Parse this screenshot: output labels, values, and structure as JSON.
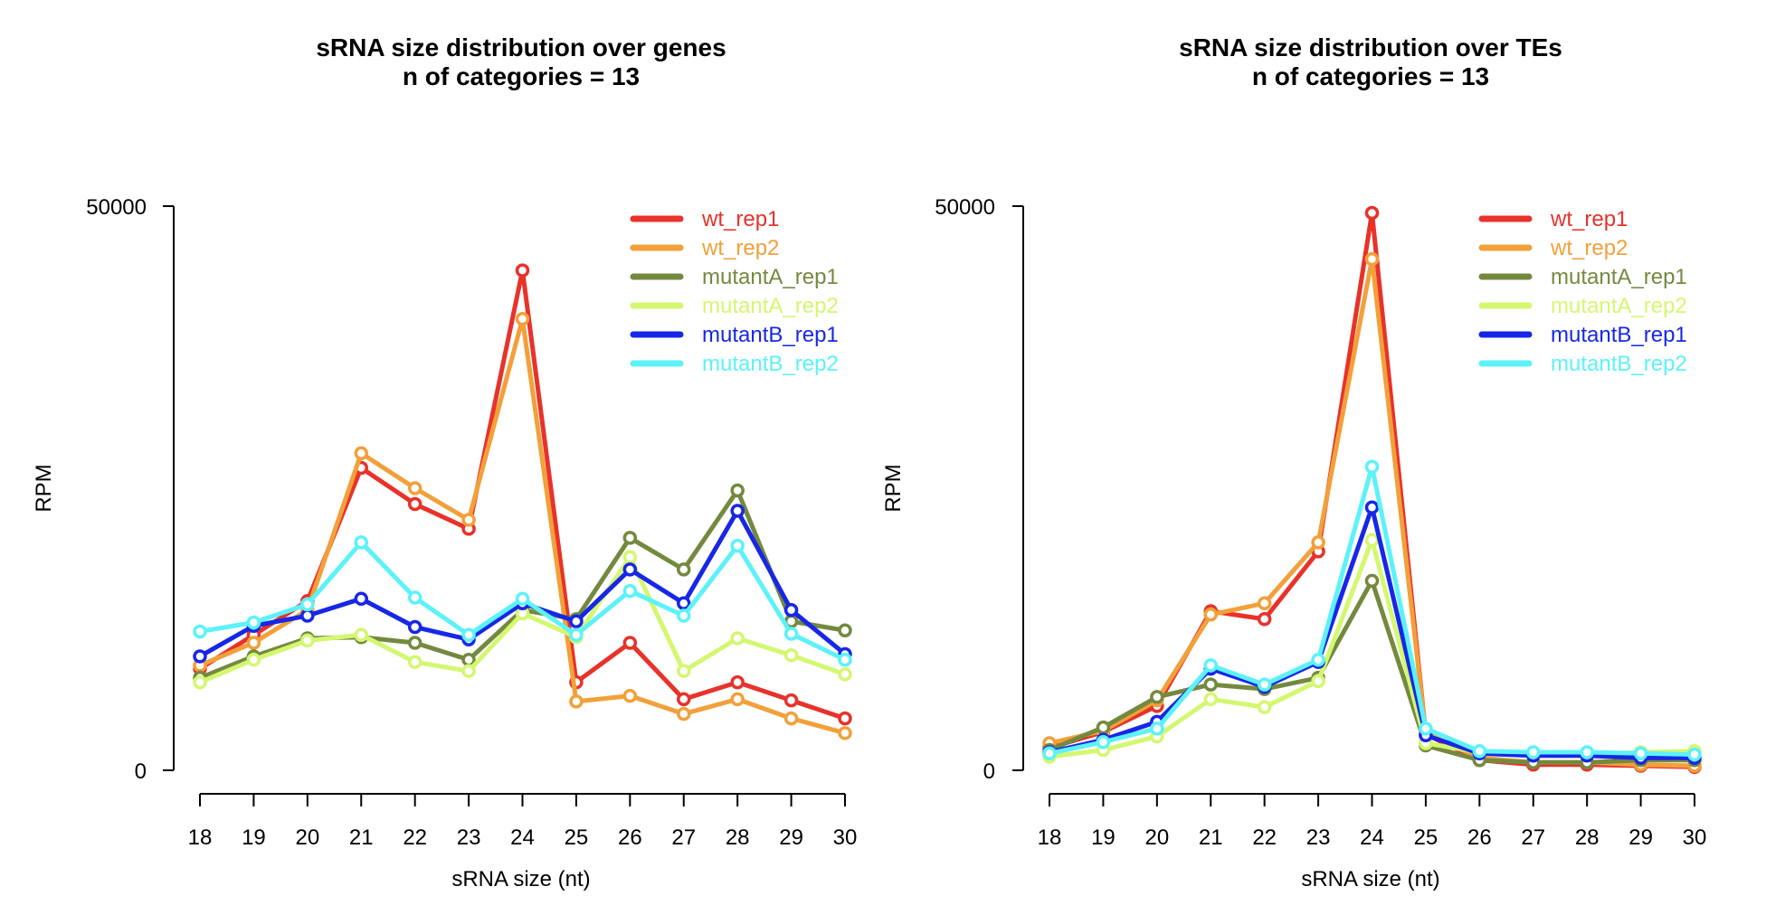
{
  "chart_data": [
    {
      "type": "line",
      "title": "sRNA size distribution over genes",
      "subtitle": "n of categories = 13",
      "xlabel": "sRNA size (nt)",
      "ylabel": "RPM",
      "x": [
        18,
        19,
        20,
        21,
        22,
        23,
        24,
        25,
        26,
        27,
        28,
        29,
        30
      ],
      "ylim": [
        0,
        50000
      ],
      "yticks": [
        "0",
        "50000"
      ],
      "legend_position": "top-right",
      "grid": false,
      "series": [
        {
          "name": "wt_rep1",
          "color": "#e8322a",
          "values": [
            9000,
            12000,
            15000,
            26800,
            23600,
            21400,
            44300,
            7800,
            11300,
            6300,
            7800,
            6200,
            4600
          ]
        },
        {
          "name": "wt_rep2",
          "color": "#f2a03a",
          "values": [
            9300,
            11300,
            14200,
            28100,
            25000,
            22200,
            40000,
            6100,
            6600,
            5000,
            6300,
            4600,
            3300
          ]
        },
        {
          "name": "mutantA_rep1",
          "color": "#74893f",
          "values": [
            8200,
            10100,
            11700,
            11800,
            11300,
            9800,
            14200,
            13400,
            20600,
            17800,
            24800,
            13200,
            12400
          ]
        },
        {
          "name": "mutantA_rep2",
          "color": "#d4f770",
          "values": [
            7800,
            9800,
            11500,
            12000,
            9600,
            8800,
            13900,
            11800,
            18900,
            8800,
            11700,
            10200,
            8500
          ]
        },
        {
          "name": "mutantB_rep1",
          "color": "#1727e6",
          "values": [
            10100,
            12800,
            13700,
            15200,
            12700,
            11600,
            14800,
            13200,
            17800,
            14800,
            23000,
            14200,
            10300
          ]
        },
        {
          "name": "mutantB_rep2",
          "color": "#5cf2fa",
          "values": [
            12300,
            13100,
            14700,
            20200,
            15300,
            12000,
            15200,
            12000,
            15900,
            13700,
            19900,
            12100,
            9800
          ]
        }
      ]
    },
    {
      "type": "line",
      "title": "sRNA size distribution over TEs",
      "subtitle": "n of categories = 13",
      "xlabel": "sRNA size (nt)",
      "ylabel": "RPM",
      "x": [
        18,
        19,
        20,
        21,
        22,
        23,
        24,
        25,
        26,
        27,
        28,
        29,
        30
      ],
      "ylim": [
        0,
        50000
      ],
      "yticks": [
        "0",
        "50000"
      ],
      "legend_position": "top-right",
      "grid": false,
      "series": [
        {
          "name": "wt_rep1",
          "color": "#e8322a",
          "values": [
            2000,
            3400,
            5700,
            14100,
            13400,
            19400,
            49400,
            3200,
            900,
            500,
            500,
            400,
            300
          ]
        },
        {
          "name": "wt_rep2",
          "color": "#f2a03a",
          "values": [
            2400,
            3500,
            6200,
            13800,
            14800,
            20200,
            45300,
            3300,
            1100,
            700,
            700,
            500,
            400
          ]
        },
        {
          "name": "mutantA_rep1",
          "color": "#74893f",
          "values": [
            1800,
            3800,
            6500,
            7600,
            7200,
            8200,
            16800,
            2200,
            900,
            700,
            700,
            900,
            900
          ]
        },
        {
          "name": "mutantA_rep2",
          "color": "#d4f770",
          "values": [
            1200,
            1800,
            3000,
            6300,
            5600,
            7900,
            20400,
            2400,
            1600,
            1500,
            1400,
            1600,
            1700
          ]
        },
        {
          "name": "mutantB_rep1",
          "color": "#1727e6",
          "values": [
            1600,
            2700,
            4300,
            9000,
            7400,
            9600,
            23300,
            3100,
            1500,
            1300,
            1300,
            1100,
            1100
          ]
        },
        {
          "name": "mutantB_rep2",
          "color": "#5cf2fa",
          "values": [
            1500,
            2500,
            3700,
            9300,
            7600,
            9800,
            26900,
            3700,
            1700,
            1600,
            1600,
            1500,
            1400
          ]
        }
      ]
    }
  ]
}
